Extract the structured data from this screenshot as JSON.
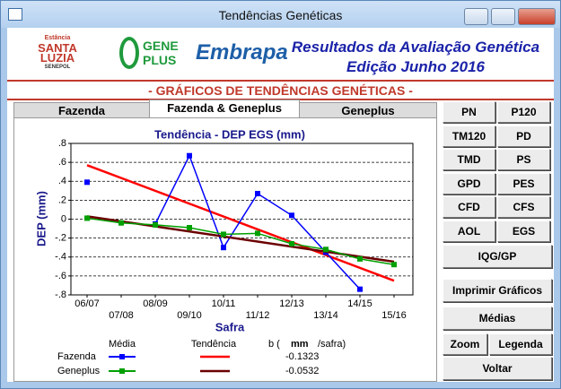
{
  "window": {
    "title": "Tendências Genéticas"
  },
  "header": {
    "logo_santa_luzia": [
      "Estância",
      "SANTA",
      "LUZIA",
      "SENEPOL"
    ],
    "logo_geneplus": [
      "GENE",
      "PLUS"
    ],
    "logo_embrapa": "Embrapa",
    "title": "Resultados da Avaliação Genética",
    "subtitle": "Edição Junho 2016"
  },
  "section_title": "- GRÁFICOS DE TENDÊNCIAS GENÉTICAS -",
  "tabs": [
    "Fazenda",
    "Fazenda & Geneplus",
    "Geneplus"
  ],
  "buttons": {
    "traits": [
      "PN",
      "P120",
      "TM120",
      "PD",
      "TMD",
      "PS",
      "GPD",
      "PES",
      "CFD",
      "CFS",
      "AOL",
      "EGS"
    ],
    "iqg": "IQG/GP",
    "print": "Imprimir Gráficos",
    "means": "Médias",
    "zoom": "Zoom",
    "legend": "Legenda",
    "back": "Voltar"
  },
  "chart_data": {
    "type": "line",
    "title": "Tendência - DEP EGS (mm)",
    "x_label": "Safra",
    "y_label": "DEP (mm)",
    "categories": [
      "06/07",
      "07/08",
      "08/09",
      "09/10",
      "10/11",
      "11/12",
      "12/13",
      "13/14",
      "14/15",
      "15/16"
    ],
    "ylim": [
      -0.8,
      0.8
    ],
    "yticks": [
      {
        "value": 0.8,
        "label": ".8"
      },
      {
        "value": 0.6,
        "label": ".6"
      },
      {
        "value": 0.4,
        "label": ".4"
      },
      {
        "value": 0.2,
        "label": ".2"
      },
      0,
      {
        "value": -0.2,
        "label": "-.2"
      },
      {
        "value": -0.4,
        "label": "-.4"
      },
      {
        "value": -0.6,
        "label": "-.6"
      },
      {
        "value": -0.8,
        "label": "-.8"
      }
    ],
    "grid": true,
    "legend_headers": [
      "Média",
      "Tendência",
      "b (",
      "mm",
      "/safra)"
    ],
    "series": [
      {
        "name": "Fazenda",
        "color": "#0000ff",
        "values": [
          0.39,
          null,
          -0.05,
          0.67,
          -0.3,
          0.27,
          0.04,
          -0.35,
          -0.74,
          null
        ],
        "trend_color": "#ff0000",
        "trend": [
          0.57,
          -0.65
        ],
        "slope": -0.1323
      },
      {
        "name": "Geneplus",
        "color": "#00a000",
        "values": [
          0.01,
          -0.04,
          -0.06,
          -0.09,
          -0.16,
          -0.15,
          -0.26,
          -0.32,
          -0.42,
          -0.48
        ],
        "trend_color": "#6b0000",
        "trend": [
          0.03,
          -0.45
        ],
        "slope": -0.0532
      }
    ]
  }
}
